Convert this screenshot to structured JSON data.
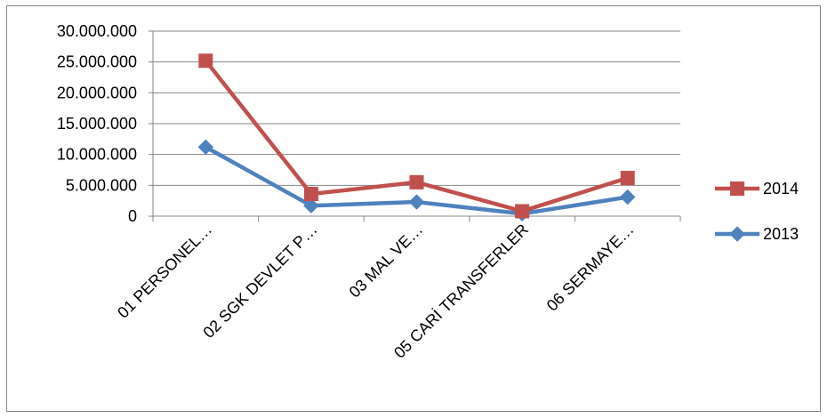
{
  "chart_data": {
    "type": "line",
    "title": "",
    "xlabel": "",
    "ylabel": "",
    "categories": [
      "01 PERSONEL…",
      "02 SGK DEVLET P…",
      "03 MAL VE…",
      "05 CARİ TRANSFERLER",
      "06 SERMAYE…"
    ],
    "y_ticks": [
      "30.000.000",
      "25.000.000",
      "20.000.000",
      "15.000.000",
      "10.000.000",
      "5.000.000",
      "0"
    ],
    "ylim": [
      0,
      30000000
    ],
    "grid": true,
    "legend_position": "right",
    "series": [
      {
        "name": "2014",
        "color": "#c0504d",
        "marker": "square",
        "values": [
          25200000,
          3600000,
          5500000,
          800000,
          6200000
        ]
      },
      {
        "name": "2013",
        "color": "#4f81bd",
        "marker": "diamond",
        "values": [
          11200000,
          1700000,
          2300000,
          400000,
          3100000
        ]
      }
    ]
  }
}
